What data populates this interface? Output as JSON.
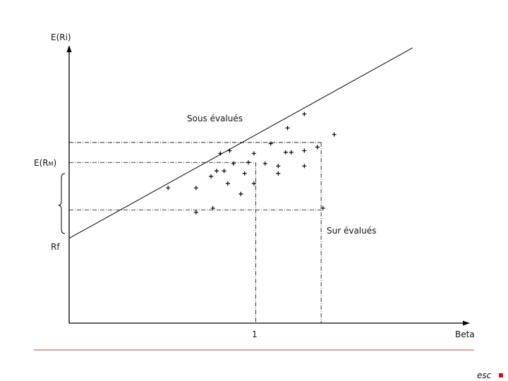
{
  "chart_data": {
    "type": "scatter",
    "title": "",
    "xlabel": "Beta",
    "ylabel": "E(Ri)",
    "x_tick_labels": [
      "1"
    ],
    "y_labels": {
      "market_return_main": "E(R",
      "market_return_sub": "M",
      "market_return_close": ")",
      "risk_free": "Rf"
    },
    "annotations": {
      "above_line": "Sous évalués",
      "below_line": "Sur évalués"
    },
    "xlim": [
      0,
      2.2
    ],
    "ylim": [
      0,
      1.0
    ],
    "risk_free_rate": 0.31,
    "sml": {
      "intercept": 0.31,
      "slope": 0.378,
      "x_end": 1.84
    },
    "reference_lines": {
      "market_beta": 1.0,
      "high_beta": 1.35,
      "upper_return": 0.66,
      "market_return": 0.587,
      "lower_return": 0.413
    },
    "points": [
      {
        "x": 1.26,
        "y": 0.764
      },
      {
        "x": 1.17,
        "y": 0.713
      },
      {
        "x": 1.42,
        "y": 0.689
      },
      {
        "x": 1.08,
        "y": 0.656
      },
      {
        "x": 0.81,
        "y": 0.62
      },
      {
        "x": 0.86,
        "y": 0.63
      },
      {
        "x": 0.99,
        "y": 0.62
      },
      {
        "x": 1.16,
        "y": 0.624
      },
      {
        "x": 1.19,
        "y": 0.624
      },
      {
        "x": 1.26,
        "y": 0.63
      },
      {
        "x": 1.33,
        "y": 0.643
      },
      {
        "x": 0.88,
        "y": 0.583
      },
      {
        "x": 0.96,
        "y": 0.587
      },
      {
        "x": 1.05,
        "y": 0.583
      },
      {
        "x": 1.12,
        "y": 0.574
      },
      {
        "x": 1.26,
        "y": 0.574
      },
      {
        "x": 0.79,
        "y": 0.556
      },
      {
        "x": 0.83,
        "y": 0.556
      },
      {
        "x": 0.94,
        "y": 0.547
      },
      {
        "x": 1.12,
        "y": 0.547
      },
      {
        "x": 0.76,
        "y": 0.536
      },
      {
        "x": 0.85,
        "y": 0.51
      },
      {
        "x": 0.99,
        "y": 0.51
      },
      {
        "x": 0.53,
        "y": 0.494
      },
      {
        "x": 0.68,
        "y": 0.494
      },
      {
        "x": 0.92,
        "y": 0.472
      },
      {
        "x": 0.77,
        "y": 0.42
      },
      {
        "x": 0.68,
        "y": 0.405
      },
      {
        "x": 1.36,
        "y": 0.42
      }
    ]
  },
  "footer": {
    "logo_text": "esc",
    "accent_color": "#c0141e",
    "rule_color": "#c8464a"
  }
}
